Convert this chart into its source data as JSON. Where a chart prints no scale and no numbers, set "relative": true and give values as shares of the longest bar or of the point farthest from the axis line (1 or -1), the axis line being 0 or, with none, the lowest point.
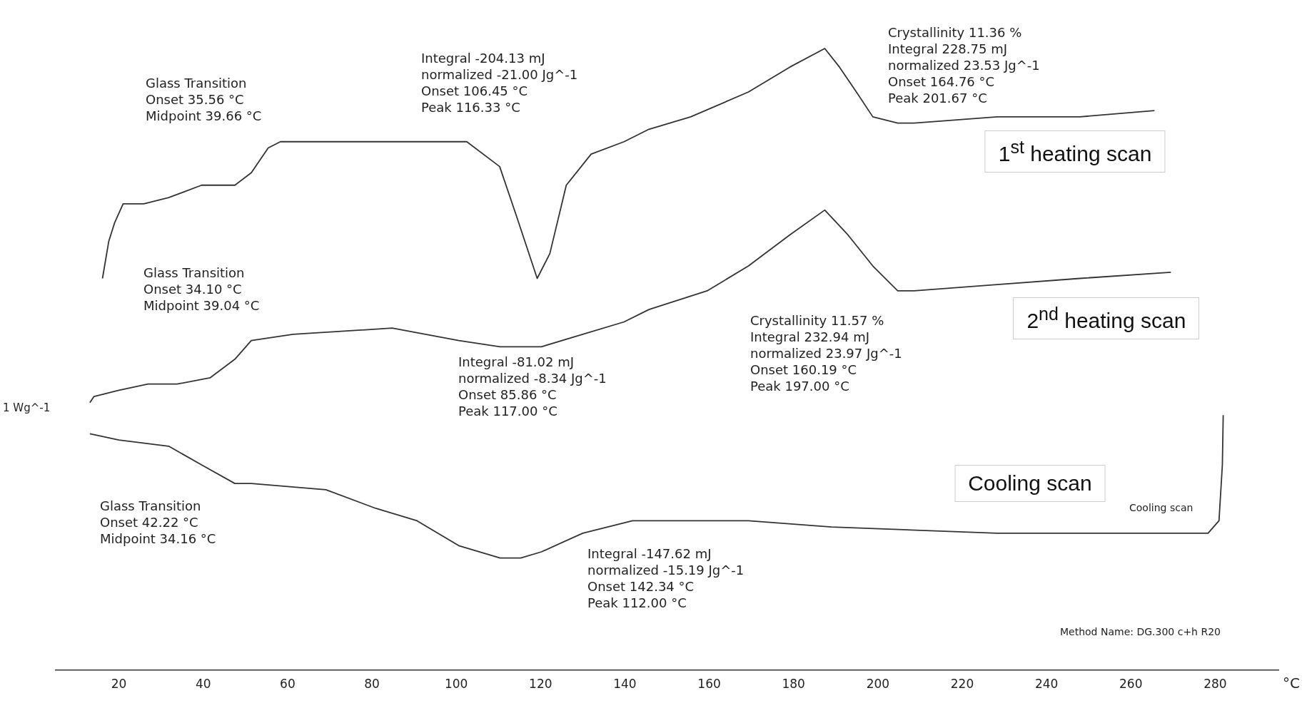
{
  "chart_data": {
    "type": "line",
    "relative": true,
    "xlabel": "°C",
    "ylabel": "1 Wg^-1",
    "xlim": [
      5,
      295
    ],
    "xticks": [
      20,
      40,
      60,
      80,
      100,
      120,
      140,
      160,
      180,
      200,
      220,
      240,
      260,
      280
    ],
    "grid": false,
    "legend": false,
    "tick_labels": "x",
    "marker": "none",
    "line_style": "solid",
    "series": [
      {
        "name": "1$^{st}$ heating scan",
        "color": "#333333",
        "x": [
          16.1,
          17.6,
          19.0,
          21.0,
          25.9,
          31.8,
          39.6,
          47.5,
          51.4,
          55.4,
          58.3,
          71.1,
          84.8,
          102.5,
          110.3,
          114.3,
          119.2,
          122.2,
          126.1,
          132.0,
          139.8,
          145.7,
          155.6,
          169.3,
          179.1,
          187.4,
          190.9,
          194.9,
          198.8,
          204.7,
          208.6,
          228.3,
          247.9,
          265.6
        ],
        "values": [
          0.63,
          0.69,
          0.72,
          0.75,
          0.75,
          0.76,
          0.78,
          0.78,
          0.8,
          0.84,
          0.85,
          0.85,
          0.85,
          0.85,
          0.81,
          0.73,
          0.63,
          0.67,
          0.78,
          0.83,
          0.85,
          0.87,
          0.89,
          0.93,
          0.97,
          1.0,
          0.97,
          0.93,
          0.89,
          0.88,
          0.88,
          0.89,
          0.89,
          0.9
        ]
      },
      {
        "name": "2$^{nd}$ heating scan",
        "color": "#333333",
        "x": [
          13.1,
          14.1,
          20.0,
          26.9,
          33.8,
          41.6,
          47.5,
          51.4,
          61.3,
          84.8,
          100.6,
          110.4,
          120.2,
          130.0,
          139.8,
          145.7,
          159.5,
          169.3,
          179.1,
          187.4,
          192.9,
          198.8,
          204.7,
          208.6,
          228.3,
          247.9,
          269.5
        ],
        "values": [
          0.43,
          0.44,
          0.45,
          0.46,
          0.46,
          0.47,
          0.5,
          0.53,
          0.54,
          0.55,
          0.53,
          0.52,
          0.52,
          0.54,
          0.56,
          0.58,
          0.61,
          0.65,
          0.7,
          0.74,
          0.7,
          0.65,
          0.61,
          0.61,
          0.62,
          0.63,
          0.64
        ]
      },
      {
        "name": "Cooling  scan",
        "color": "#333333",
        "x": [
          13.1,
          20.0,
          31.8,
          39.6,
          47.5,
          51.4,
          69.1,
          80.9,
          90.7,
          100.6,
          110.4,
          115.3,
          120.2,
          130.0,
          141.8,
          149.7,
          157.5,
          169.3,
          189.0,
          228.3,
          267.5,
          278.3,
          280.9,
          281.7,
          281.9
        ],
        "values": [
          0.38,
          0.37,
          0.36,
          0.33,
          0.3,
          0.3,
          0.29,
          0.26,
          0.24,
          0.2,
          0.18,
          0.18,
          0.19,
          0.22,
          0.24,
          0.24,
          0.24,
          0.24,
          0.23,
          0.22,
          0.22,
          0.22,
          0.24,
          0.33,
          0.41
        ]
      }
    ],
    "annotations": [
      "Glass Transition\nOnset 35.56 °C\nMidpoint 39.66 °C",
      "Integral -204.13 mJ\nnormalized -21.00 Jg^-1\nOnset 106.45 °C\nPeak 116.33 °C",
      "Crystallinity 11.36 %\nIntegral 228.75 mJ\nnormalized 23.53 Jg^-1\nOnset 164.76 °C\nPeak 201.67 °C",
      "Glass Transition\nOnset 34.10 °C\nMidpoint 39.04 °C",
      "Integral -81.02 mJ\nnormalized -8.34 Jg^-1\nOnset 85.86 °C\nPeak 117.00 °C",
      "Crystallinity 11.57 %\nIntegral 232.94 mJ\nnormalized 23.97 Jg^-1\nOnset 160.19 °C\nPeak 197.00 °C",
      "Glass Transition\nOnset 42.22 °C\nMidpoint 34.16 °C",
      "Integral -147.62 mJ\nnormalized -15.19 Jg^-1\nOnset 142.34 °C\nPeak 112.00 °C",
      "Cooling scan",
      "Method Name: DG.300 c+h R20"
    ]
  }
}
